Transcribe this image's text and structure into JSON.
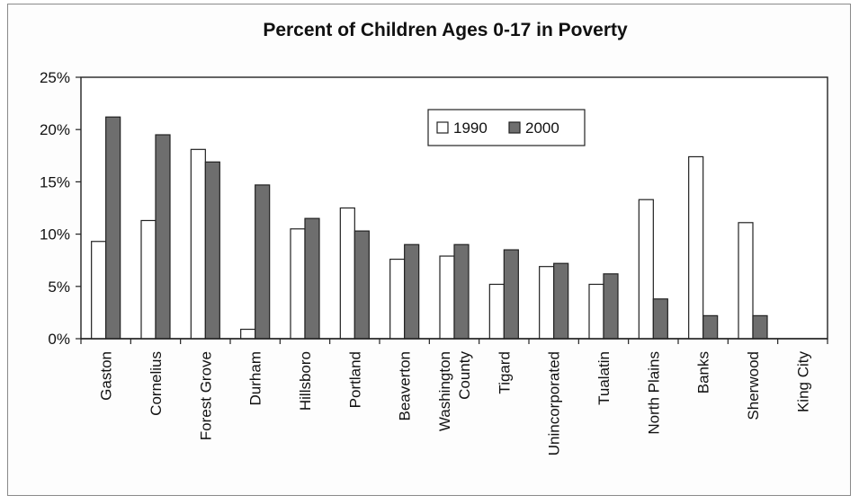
{
  "chart_data": {
    "type": "bar",
    "title": "Percent of Children Ages 0-17 in Poverty",
    "xlabel": "",
    "ylabel": "",
    "ylim": [
      0,
      25
    ],
    "yticks": [
      "0%",
      "5%",
      "10%",
      "15%",
      "20%",
      "25%"
    ],
    "grid": false,
    "legend_position": "top-right",
    "categories": [
      [
        "Gaston"
      ],
      [
        "Cornelius"
      ],
      [
        "Forest Grove"
      ],
      [
        "Durham"
      ],
      [
        "Hillsboro"
      ],
      [
        "Portland"
      ],
      [
        "Beaverton"
      ],
      [
        "Washington",
        "County"
      ],
      [
        "Tigard"
      ],
      [
        "Unincorporated"
      ],
      [
        "Tualatin"
      ],
      [
        "North Plains"
      ],
      [
        "Banks"
      ],
      [
        "Sherwood"
      ],
      [
        "King City"
      ]
    ],
    "series": [
      {
        "name": "1990",
        "color": "#ffffff",
        "values": [
          9.3,
          11.3,
          18.1,
          0.9,
          10.5,
          12.5,
          7.6,
          7.9,
          5.2,
          6.9,
          5.2,
          13.3,
          17.4,
          11.1,
          0
        ]
      },
      {
        "name": "2000",
        "color": "#6e6e6e",
        "values": [
          21.2,
          19.5,
          16.9,
          14.7,
          11.5,
          10.3,
          9.0,
          9.0,
          8.5,
          7.2,
          6.2,
          3.8,
          2.2,
          2.2,
          0
        ]
      }
    ]
  }
}
